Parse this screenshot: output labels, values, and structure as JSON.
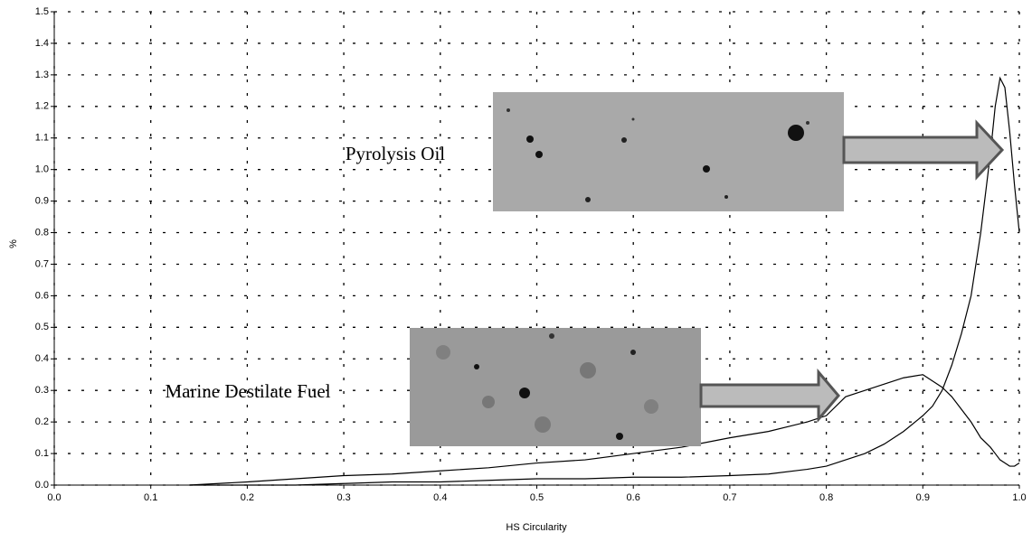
{
  "chart_data": {
    "type": "line",
    "x_label": "HS Circularity",
    "y_label": "%",
    "x": [
      0.14,
      0.2,
      0.25,
      0.3,
      0.35,
      0.4,
      0.45,
      0.5,
      0.55,
      0.6,
      0.65,
      0.7,
      0.74,
      0.78,
      0.8,
      0.82,
      0.84,
      0.86,
      0.88,
      0.9,
      0.91,
      0.92,
      0.93,
      0.94,
      0.95,
      0.96,
      0.97,
      0.975,
      0.98,
      0.985,
      0.99,
      0.995,
      1.0
    ],
    "series": [
      {
        "name": "Pyrolysis Oil",
        "color": "#000000",
        "values": [
          0,
          0,
          0,
          0.005,
          0.01,
          0.01,
          0.015,
          0.02,
          0.02,
          0.025,
          0.025,
          0.03,
          0.035,
          0.05,
          0.06,
          0.08,
          0.1,
          0.13,
          0.17,
          0.22,
          0.25,
          0.3,
          0.38,
          0.48,
          0.6,
          0.8,
          1.05,
          1.2,
          1.29,
          1.26,
          1.12,
          0.95,
          0.8
        ]
      },
      {
        "name": "Marine Destilate Fuel",
        "color": "#000000",
        "values": [
          0,
          0.01,
          0.02,
          0.03,
          0.035,
          0.045,
          0.055,
          0.07,
          0.08,
          0.1,
          0.12,
          0.15,
          0.17,
          0.2,
          0.22,
          0.28,
          0.3,
          0.32,
          0.34,
          0.35,
          0.33,
          0.31,
          0.28,
          0.24,
          0.2,
          0.15,
          0.12,
          0.1,
          0.08,
          0.07,
          0.06,
          0.06,
          0.07
        ]
      }
    ],
    "xlim": [
      0,
      1
    ],
    "ylim": [
      0,
      1.5
    ],
    "xticks": [
      {
        "value": 0,
        "label": "0.0"
      },
      0.1,
      0.2,
      0.3,
      0.4,
      0.5,
      0.6,
      0.7,
      0.8,
      0.9,
      {
        "value": 1,
        "label": "1.0"
      }
    ],
    "yticks": [
      {
        "value": 0,
        "label": "0.0"
      },
      0.1,
      0.2,
      0.3,
      0.4,
      0.5,
      0.6,
      0.7,
      0.8,
      0.9,
      {
        "value": 1,
        "label": "1.0"
      },
      1.1,
      1.2,
      1.3,
      1.4,
      1.5
    ],
    "grid": true,
    "legend": false
  }
}
